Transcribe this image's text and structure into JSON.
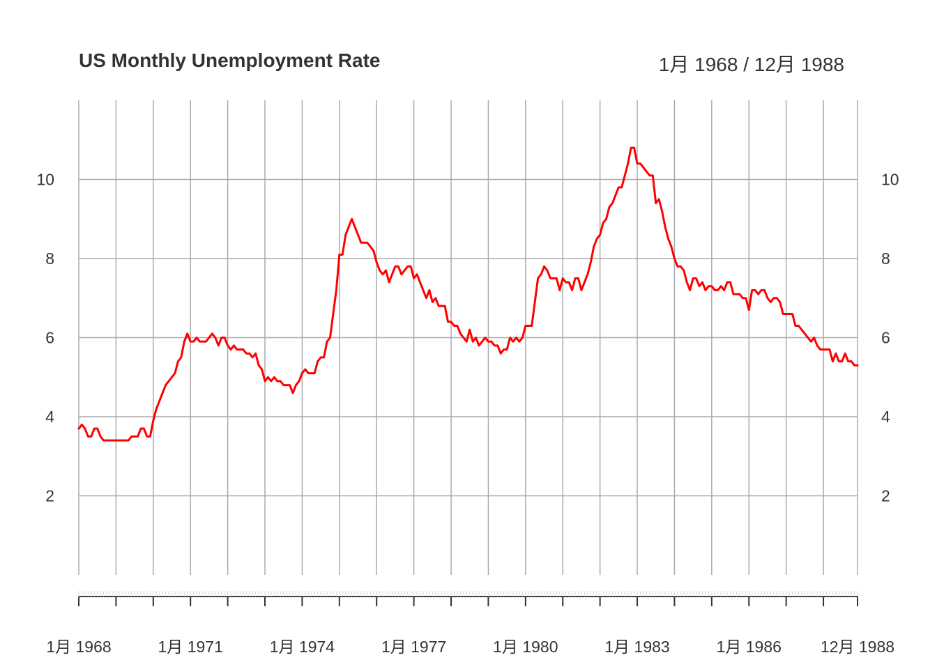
{
  "chart_data": {
    "type": "line",
    "title": "US Monthly Unemployment Rate",
    "date_range": "1月 1968 / 12月 1988",
    "x_start": "1968-01",
    "x_end": "1988-12",
    "x_tick_labels": [
      "1月 1968",
      "1月 1971",
      "1月 1974",
      "1月 1977",
      "1月 1980",
      "1月 1983",
      "1月 1986",
      "12月 1988"
    ],
    "y_ticks": [
      2,
      4,
      6,
      8,
      10
    ],
    "ylim": [
      0,
      12
    ],
    "grid": true,
    "colors": {
      "line": "#ff0000",
      "grid": "#aaaaaa",
      "text": "#333333"
    },
    "series": [
      {
        "values": [
          3.7,
          3.8,
          3.7,
          3.5,
          3.5,
          3.7,
          3.7,
          3.5,
          3.4,
          3.4,
          3.4,
          3.4,
          3.4,
          3.4,
          3.4,
          3.4,
          3.4,
          3.5,
          3.5,
          3.5,
          3.7,
          3.7,
          3.5,
          3.5,
          3.9,
          4.2,
          4.4,
          4.6,
          4.8,
          4.9,
          5.0,
          5.1,
          5.4,
          5.5,
          5.9,
          6.1,
          5.9,
          5.9,
          6.0,
          5.9,
          5.9,
          5.9,
          6.0,
          6.1,
          6.0,
          5.8,
          6.0,
          6.0,
          5.8,
          5.7,
          5.8,
          5.7,
          5.7,
          5.7,
          5.6,
          5.6,
          5.5,
          5.6,
          5.3,
          5.2,
          4.9,
          5.0,
          4.9,
          5.0,
          4.9,
          4.9,
          4.8,
          4.8,
          4.8,
          4.6,
          4.8,
          4.9,
          5.1,
          5.2,
          5.1,
          5.1,
          5.1,
          5.4,
          5.5,
          5.5,
          5.9,
          6.0,
          6.6,
          7.2,
          8.1,
          8.1,
          8.6,
          8.8,
          9.0,
          8.8,
          8.6,
          8.4,
          8.4,
          8.4,
          8.3,
          8.2,
          7.9,
          7.7,
          7.6,
          7.7,
          7.4,
          7.6,
          7.8,
          7.8,
          7.6,
          7.7,
          7.8,
          7.8,
          7.5,
          7.6,
          7.4,
          7.2,
          7.0,
          7.2,
          6.9,
          7.0,
          6.8,
          6.8,
          6.8,
          6.4,
          6.4,
          6.3,
          6.3,
          6.1,
          6.0,
          5.9,
          6.2,
          5.9,
          6.0,
          5.8,
          5.9,
          6.0,
          5.9,
          5.9,
          5.8,
          5.8,
          5.6,
          5.7,
          5.7,
          6.0,
          5.9,
          6.0,
          5.9,
          6.0,
          6.3,
          6.3,
          6.3,
          6.9,
          7.5,
          7.6,
          7.8,
          7.7,
          7.5,
          7.5,
          7.5,
          7.2,
          7.5,
          7.4,
          7.4,
          7.2,
          7.5,
          7.5,
          7.2,
          7.4,
          7.6,
          7.9,
          8.3,
          8.5,
          8.6,
          8.9,
          9.0,
          9.3,
          9.4,
          9.6,
          9.8,
          9.8,
          10.1,
          10.4,
          10.8,
          10.8,
          10.4,
          10.4,
          10.3,
          10.2,
          10.1,
          10.1,
          9.4,
          9.5,
          9.2,
          8.8,
          8.5,
          8.3,
          8.0,
          7.8,
          7.8,
          7.7,
          7.4,
          7.2,
          7.5,
          7.5,
          7.3,
          7.4,
          7.2,
          7.3,
          7.3,
          7.2,
          7.2,
          7.3,
          7.2,
          7.4,
          7.4,
          7.1,
          7.1,
          7.1,
          7.0,
          7.0,
          6.7,
          7.2,
          7.2,
          7.1,
          7.2,
          7.2,
          7.0,
          6.9,
          7.0,
          7.0,
          6.9,
          6.6,
          6.6,
          6.6,
          6.6,
          6.3,
          6.3,
          6.2,
          6.1,
          6.0,
          5.9,
          6.0,
          5.8,
          5.7,
          5.7,
          5.7,
          5.7,
          5.4,
          5.6,
          5.4,
          5.4,
          5.6,
          5.4,
          5.4,
          5.3,
          5.3
        ]
      }
    ]
  }
}
